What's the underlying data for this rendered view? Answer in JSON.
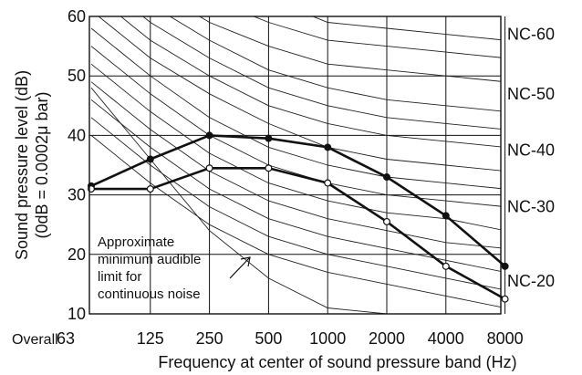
{
  "chart_data": {
    "type": "line",
    "title": "",
    "xlabel": "Frequency at center of sound pressure band (Hz)",
    "ylabel": "Sound pressure level (dB)",
    "ylabel_line2": "(0dB = 0.0002μ bar)",
    "x_first_label": "Overall",
    "categories": [
      "63",
      "125",
      "250",
      "500",
      "1000",
      "2000",
      "4000",
      "8000"
    ],
    "y_ticks": [
      "10",
      "20",
      "30",
      "40",
      "50",
      "60"
    ],
    "ylim": [
      10,
      60
    ],
    "grid": true,
    "nc_labels": [
      {
        "text": "NC-60",
        "y": 57
      },
      {
        "text": "NC-50",
        "y": 47
      },
      {
        "text": "NC-40",
        "y": 37.5
      },
      {
        "text": "NC-30",
        "y": 28
      },
      {
        "text": "NC-20",
        "y": 15.5
      }
    ],
    "nc_curves": [
      [
        79,
        71,
        67,
        63,
        59,
        58,
        57,
        56
      ],
      [
        76,
        68,
        63,
        59,
        56,
        55,
        54,
        53
      ],
      [
        73,
        65,
        59,
        55,
        52,
        51,
        50,
        49
      ],
      [
        70,
        62,
        56,
        51,
        48,
        46,
        45,
        44
      ],
      [
        67,
        59,
        53,
        48,
        45,
        43,
        42,
        41
      ],
      [
        64,
        56,
        50,
        45,
        42,
        40,
        39,
        38
      ],
      [
        61,
        53,
        47,
        42,
        38,
        36,
        35,
        34
      ],
      [
        58,
        50,
        43,
        38,
        35,
        33,
        32,
        31
      ],
      [
        55,
        47,
        40,
        35,
        32,
        30,
        29,
        28
      ],
      [
        52,
        44,
        37,
        32,
        29,
        27,
        26,
        24
      ],
      [
        49,
        41,
        34,
        29,
        26,
        24,
        22,
        21
      ],
      [
        46,
        38,
        31,
        26,
        23,
        21,
        19,
        17
      ],
      [
        43,
        35,
        28,
        23,
        20,
        18,
        16,
        14
      ],
      [
        40,
        32,
        25,
        20,
        17,
        15,
        13,
        11
      ]
    ],
    "audible_limit": [
      48,
      36,
      24,
      16,
      11,
      10,
      9,
      8
    ],
    "series": [
      {
        "marker": "filled",
        "values": [
          31.5,
          36,
          40,
          39.5,
          38,
          33,
          26.5,
          18
        ]
      },
      {
        "marker": "open",
        "values": [
          31,
          31,
          34.5,
          34.5,
          32,
          25.5,
          18,
          12.5
        ]
      }
    ],
    "annotation": {
      "lines": [
        "Approximate",
        "minimum audible",
        "limit for",
        "continuous noise"
      ]
    }
  }
}
